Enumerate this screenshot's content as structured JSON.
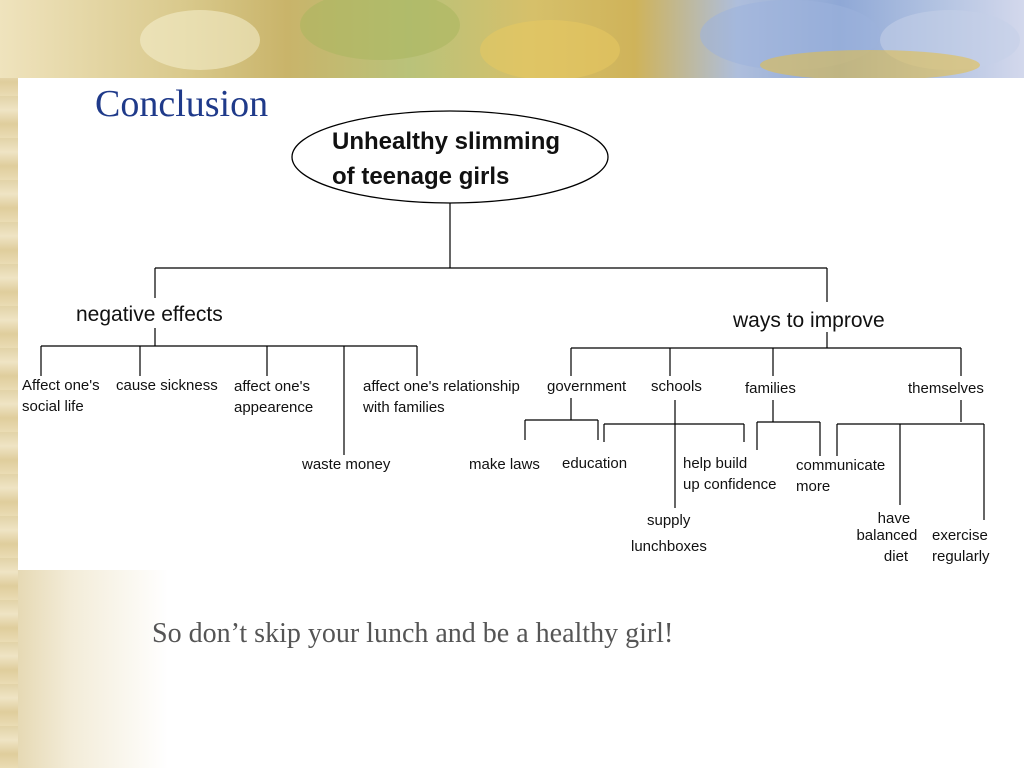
{
  "slide": {
    "title": "Conclusion",
    "tagline": "So don’t skip your lunch and be a healthy girl!"
  },
  "diagram": {
    "root": {
      "lines": [
        "Unhealthy slimming",
        "of teenage girls"
      ]
    },
    "branches": {
      "negative": {
        "label": "negative effects",
        "items": {
          "social_life": [
            "Affect one's",
            "social life"
          ],
          "sickness": [
            "cause sickness"
          ],
          "appearance": [
            "affect one's",
            "appearence"
          ],
          "money": [
            "waste money"
          ],
          "relationship": [
            "affect one's relationship",
            "with families"
          ]
        }
      },
      "improve": {
        "label": "ways to improve",
        "groups": {
          "government": {
            "label": "government",
            "items": {
              "laws": [
                "make laws"
              ],
              "education": [
                "education"
              ]
            }
          },
          "schools": {
            "label": "schools",
            "items": {
              "lunchboxes": [
                "supply",
                "lunchboxes"
              ],
              "confidence": [
                "help build",
                "up confidence"
              ]
            }
          },
          "families": {
            "label": "families",
            "items": {
              "communicate": [
                "communicate",
                "more"
              ]
            }
          },
          "themselves": {
            "label": "themselves",
            "items": {
              "diet": [
                "have",
                "balanced",
                "diet"
              ],
              "exercise": [
                "exercise",
                "regularly"
              ]
            }
          }
        }
      }
    }
  },
  "colors": {
    "title": "#1f3a8a",
    "tagline": "#555555",
    "lines": "#000000"
  }
}
